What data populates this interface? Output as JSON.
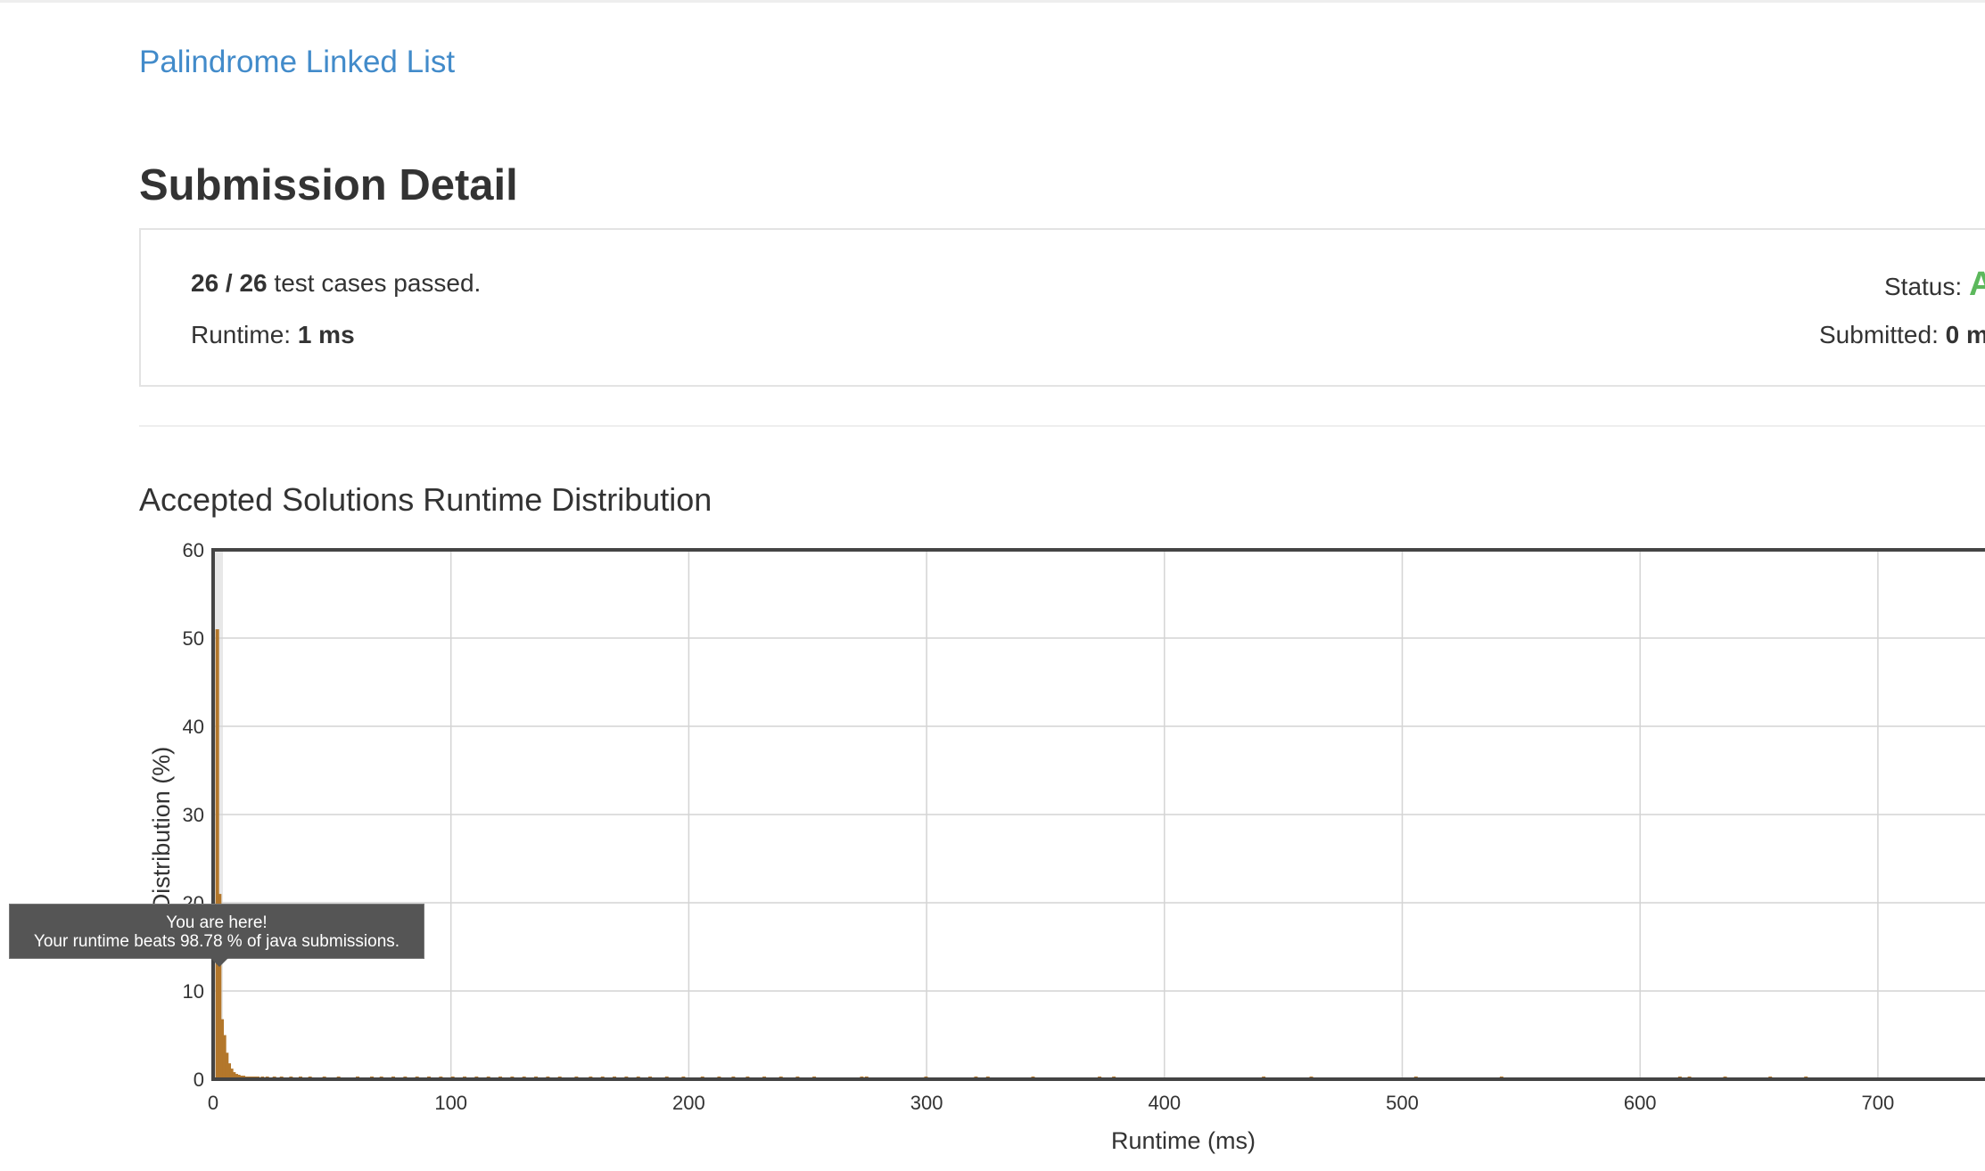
{
  "problem_title": "Palindrome Linked List",
  "page_title": "Submission Detail",
  "detail": {
    "passed_count": "26 / 26",
    "passed_suffix": " test cases passed.",
    "runtime_label": "Runtime: ",
    "runtime_value": "1 ms",
    "status_label": "Status: ",
    "status_value": "A",
    "submitted_label": "Submitted: ",
    "submitted_value": "0 m"
  },
  "chart_heading": "Accepted Solutions Runtime Distribution",
  "tooltip": {
    "line1": "You are here!",
    "line2": "Your runtime beats 98.78 % of java submissions."
  },
  "colors": {
    "link": "#428bca",
    "status_accepted": "#5cb85c",
    "bar": "#b3772b",
    "highlight_band": "#e8e8e8"
  },
  "chart_data": {
    "type": "bar",
    "title": "",
    "xlabel": "Runtime (ms)",
    "ylabel": "Distribution (%)",
    "xlim": [
      0,
      750
    ],
    "ylim": [
      0,
      60
    ],
    "xticks": [
      0,
      100,
      200,
      300,
      400,
      500,
      600,
      700
    ],
    "yticks": [
      0,
      10,
      20,
      30,
      40,
      50,
      60
    ],
    "grid": true,
    "highlight_x": 1,
    "x": [
      1,
      2,
      3,
      4,
      5,
      6,
      7,
      8,
      9,
      10,
      11,
      12,
      13,
      14,
      15,
      16,
      17,
      18,
      20,
      22,
      25,
      28,
      32,
      36,
      40,
      46,
      52,
      60,
      66,
      70,
      75,
      80,
      85,
      90,
      95,
      100,
      105,
      110,
      115,
      120,
      125,
      130,
      135,
      140,
      145,
      152,
      158,
      163,
      168,
      173,
      178,
      183,
      190,
      197,
      205,
      212,
      218,
      224,
      231,
      238,
      245,
      252,
      272,
      274,
      299,
      320,
      325,
      344,
      372,
      378,
      441,
      461,
      505,
      541,
      616,
      620,
      635,
      654,
      669
    ],
    "values": [
      51,
      21,
      6.8,
      5,
      3,
      1.8,
      1.2,
      0.8,
      0.6,
      0.5,
      0.4,
      0.4,
      0.3,
      0.3,
      0.3,
      0.3,
      0.3,
      0.3,
      0.3,
      0.3,
      0.3,
      0.3,
      0.3,
      0.3,
      0.3,
      0.3,
      0.3,
      0.3,
      0.3,
      0.3,
      0.3,
      0.3,
      0.3,
      0.3,
      0.3,
      0.3,
      0.3,
      0.3,
      0.3,
      0.3,
      0.3,
      0.3,
      0.3,
      0.3,
      0.3,
      0.3,
      0.3,
      0.3,
      0.3,
      0.3,
      0.3,
      0.3,
      0.3,
      0.3,
      0.3,
      0.3,
      0.3,
      0.3,
      0.3,
      0.3,
      0.3,
      0.3,
      0.3,
      0.3,
      0.3,
      0.3,
      0.3,
      0.3,
      0.3,
      0.3,
      0.3,
      0.3,
      0.3,
      0.3,
      0.3,
      0.3,
      0.3,
      0.3,
      0.3
    ]
  }
}
